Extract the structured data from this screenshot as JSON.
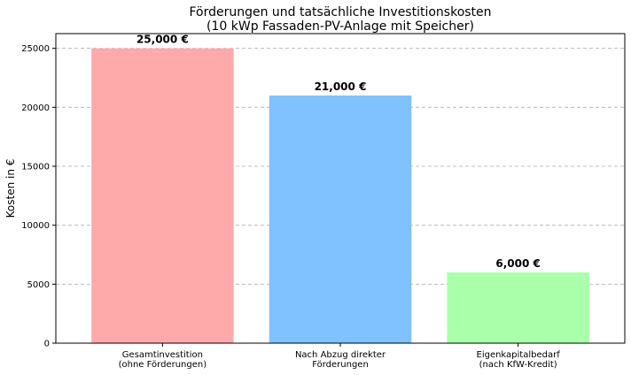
{
  "chart_data": {
    "type": "bar",
    "title_lines": [
      "Förderungen und tatsächliche Investitionskosten",
      "(10 kWp Fassaden-PV-Anlage mit Speicher)"
    ],
    "xlabel": "",
    "ylabel": "Kosten in €",
    "ylim": [
      0,
      26250
    ],
    "yticks": [
      0,
      5000,
      10000,
      15000,
      20000,
      25000
    ],
    "ytick_labels": [
      "0",
      "5000",
      "10000",
      "15000",
      "20000",
      "25000"
    ],
    "grid": "y-dashed",
    "categories": [
      [
        "Gesamtinvestition",
        "(ohne Förderungen)"
      ],
      [
        "Nach Abzug direkter",
        "Förderungen"
      ],
      [
        "Eigenkapitalbedarf",
        "(nach KfW-Kredit)"
      ]
    ],
    "values": [
      25000,
      21000,
      6000
    ],
    "value_labels": [
      "25,000 €",
      "21,000 €",
      "6,000 €"
    ],
    "colors": [
      "#ffaaaa",
      "#80c1ff",
      "#aaffaa"
    ]
  }
}
